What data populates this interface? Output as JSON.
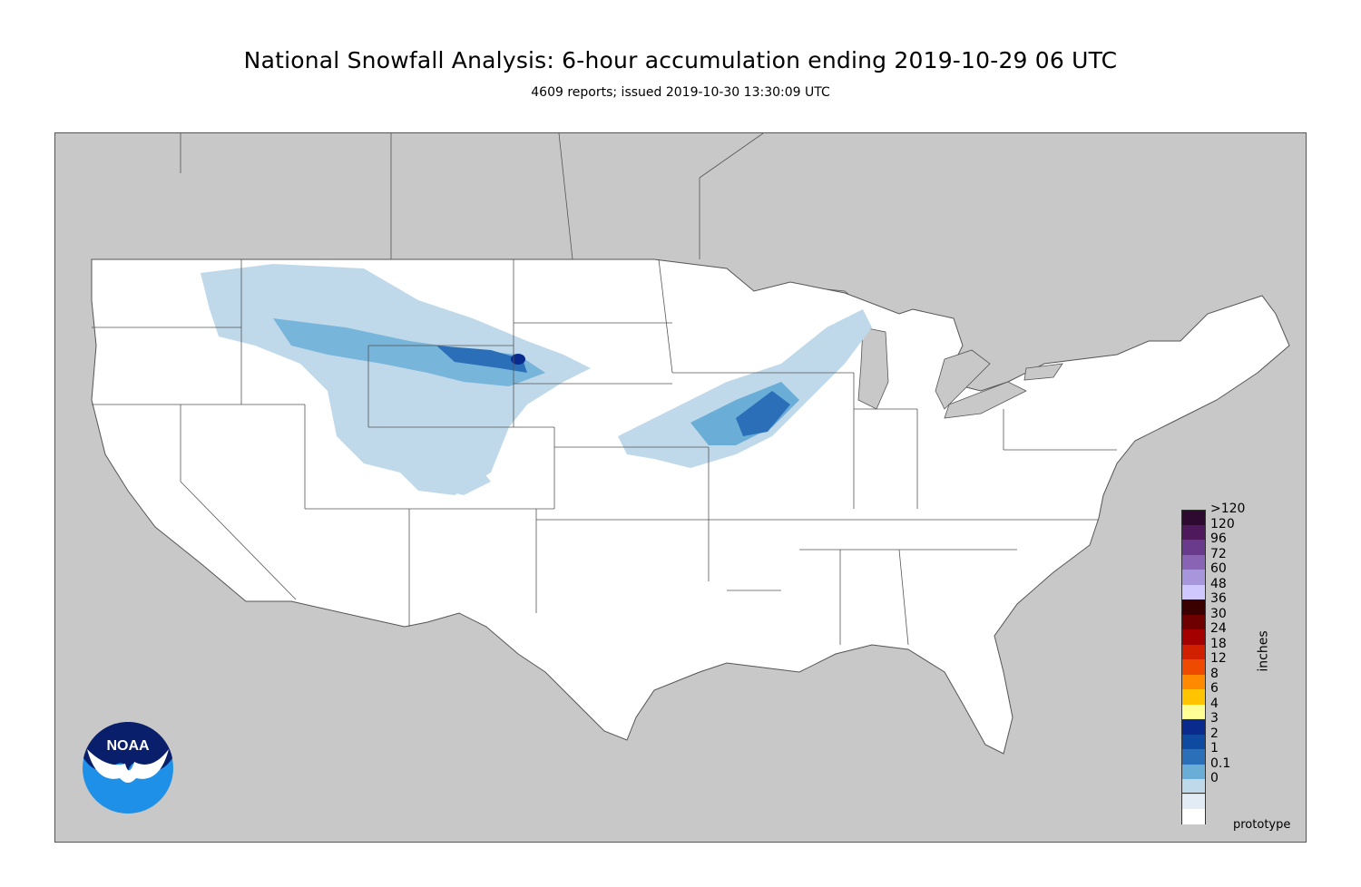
{
  "title": "National Snowfall Analysis: 6-hour accumulation ending 2019-10-29 06 UTC",
  "subtitle": "4609 reports; issued 2019-10-30 13:30:09 UTC",
  "colors": {
    "land_outside": "#c8c8c8",
    "conus_fill": "#ffffff",
    "boundary": "#555555"
  },
  "legend": {
    "units": "inches",
    "items": [
      {
        "label": ">120",
        "color": "#2e0a30"
      },
      {
        "label": "120",
        "color": "#4f1a5c"
      },
      {
        "label": "96",
        "color": "#6a3a8c"
      },
      {
        "label": "72",
        "color": "#8a64b4"
      },
      {
        "label": "60",
        "color": "#a896dc"
      },
      {
        "label": "48",
        "color": "#cfc8ff"
      },
      {
        "label": "36",
        "color": "#3a0000"
      },
      {
        "label": "30",
        "color": "#6e0000"
      },
      {
        "label": "24",
        "color": "#a40000"
      },
      {
        "label": "18",
        "color": "#d02000"
      },
      {
        "label": "12",
        "color": "#ee4a00"
      },
      {
        "label": "8",
        "color": "#ff8a00"
      },
      {
        "label": "6",
        "color": "#ffc400"
      },
      {
        "label": "4",
        "color": "#ffff96"
      },
      {
        "label": "3",
        "color": "#0a2a8e"
      },
      {
        "label": "2",
        "color": "#0e4aa0"
      },
      {
        "label": "1",
        "color": "#2a6fb8"
      },
      {
        "label": "0.1",
        "color": "#6aaed8"
      },
      {
        "label": "0",
        "color": "#bfd9ea"
      }
    ],
    "bottom_swatches": [
      "#e2ecf5",
      "#ffffff"
    ]
  },
  "footnote": "prototype",
  "logo": {
    "text": "NOAA"
  }
}
